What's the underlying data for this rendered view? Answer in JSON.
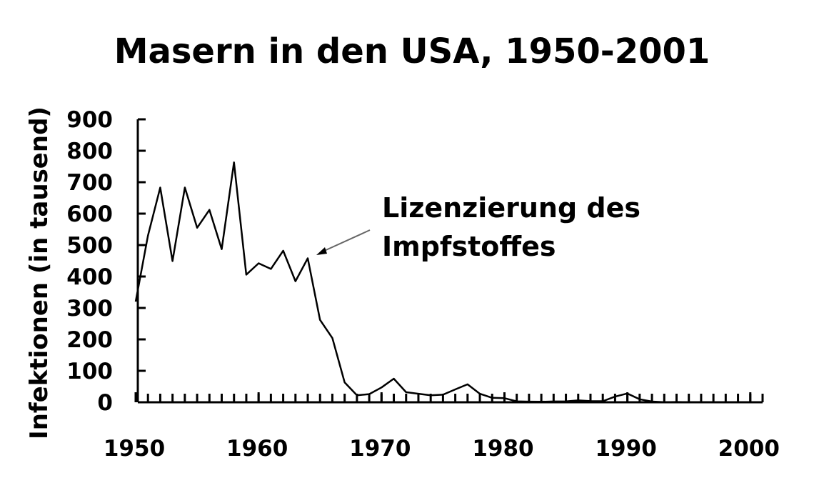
{
  "chart_data": {
    "type": "line",
    "title": "Masern in den USA, 1950-2001",
    "y_label": "Infektionen (in tausend)",
    "annotation": [
      "Lizenzierung des",
      "Impfstoffes"
    ],
    "x": [
      1950,
      1951,
      1952,
      1953,
      1954,
      1955,
      1956,
      1957,
      1958,
      1959,
      1960,
      1961,
      1962,
      1963,
      1964,
      1965,
      1966,
      1967,
      1968,
      1969,
      1970,
      1971,
      1972,
      1973,
      1974,
      1975,
      1976,
      1977,
      1978,
      1979,
      1980,
      1981,
      1982,
      1983,
      1984,
      1985,
      1986,
      1987,
      1988,
      1989,
      1990,
      1991,
      1992,
      1993,
      1994,
      1995,
      1996,
      1997,
      1998,
      1999,
      2000,
      2001
    ],
    "series": [
      {
        "color": "#000000",
        "values": [
          320,
          530,
          683,
          449,
          683,
          555,
          612,
          487,
          763,
          406,
          442,
          424,
          482,
          385,
          458,
          262,
          204,
          63,
          22,
          26,
          47,
          75,
          32,
          27,
          22,
          24,
          41,
          57,
          27,
          14,
          13,
          3,
          2,
          1.5,
          2.6,
          2.8,
          6,
          3.7,
          3.4,
          18,
          28,
          9.6,
          2.2,
          0.3,
          1,
          0.3,
          0.5,
          0.1,
          0.1,
          0.1,
          0.1,
          0.1
        ]
      }
    ],
    "xlim": [
      1950,
      2001
    ],
    "xticks": [
      1950,
      1960,
      1970,
      1980,
      1990,
      2000
    ],
    "ylim": [
      0,
      900
    ],
    "yticks": [
      0,
      100,
      200,
      300,
      400,
      500,
      600,
      700,
      800,
      900
    ]
  }
}
